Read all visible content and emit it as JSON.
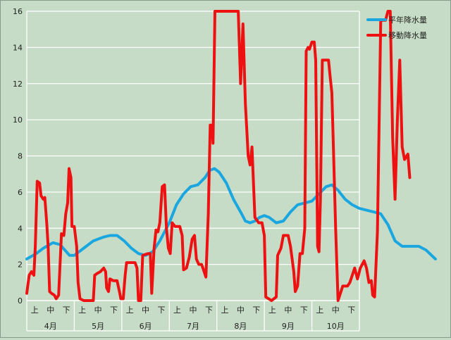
{
  "chart_data": {
    "type": "line",
    "title": "",
    "xlabel": "",
    "ylabel": "",
    "ylim": [
      0,
      16
    ],
    "y_ticks": [
      0,
      2,
      4,
      6,
      8,
      10,
      12,
      14,
      16
    ],
    "grid": "horizontal",
    "legend_position": "top-right",
    "x_sub_labels": [
      "上",
      "中",
      "下"
    ],
    "months": [
      "4月",
      "5月",
      "6月",
      "7月",
      "8月",
      "9月",
      "10月"
    ],
    "x_unit": "month index (0 = start of 4月, 7 = end of 10月)",
    "series": [
      {
        "name": "平年降水量",
        "color": "#1aa7e0",
        "points": [
          [
            0.0,
            2.3
          ],
          [
            0.2,
            2.6
          ],
          [
            0.35,
            2.9
          ],
          [
            0.55,
            3.2
          ],
          [
            0.7,
            3.1
          ],
          [
            0.8,
            2.8
          ],
          [
            0.9,
            2.5
          ],
          [
            1.0,
            2.5
          ],
          [
            1.2,
            2.9
          ],
          [
            1.4,
            3.3
          ],
          [
            1.6,
            3.5
          ],
          [
            1.75,
            3.6
          ],
          [
            1.9,
            3.6
          ],
          [
            2.05,
            3.3
          ],
          [
            2.2,
            2.9
          ],
          [
            2.35,
            2.6
          ],
          [
            2.5,
            2.5
          ],
          [
            2.65,
            2.7
          ],
          [
            2.8,
            3.3
          ],
          [
            3.0,
            4.3
          ],
          [
            3.15,
            5.3
          ],
          [
            3.3,
            5.9
          ],
          [
            3.45,
            6.3
          ],
          [
            3.6,
            6.4
          ],
          [
            3.75,
            6.8
          ],
          [
            3.85,
            7.2
          ],
          [
            3.95,
            7.3
          ],
          [
            4.05,
            7.1
          ],
          [
            4.2,
            6.5
          ],
          [
            4.35,
            5.6
          ],
          [
            4.5,
            4.9
          ],
          [
            4.6,
            4.4
          ],
          [
            4.7,
            4.3
          ],
          [
            4.8,
            4.4
          ],
          [
            4.9,
            4.6
          ],
          [
            5.0,
            4.7
          ],
          [
            5.1,
            4.6
          ],
          [
            5.25,
            4.3
          ],
          [
            5.4,
            4.4
          ],
          [
            5.55,
            4.9
          ],
          [
            5.7,
            5.3
          ],
          [
            5.85,
            5.4
          ],
          [
            6.0,
            5.5
          ],
          [
            6.15,
            5.9
          ],
          [
            6.3,
            6.3
          ],
          [
            6.42,
            6.4
          ],
          [
            6.55,
            6.1
          ],
          [
            6.7,
            5.6
          ],
          [
            6.85,
            5.3
          ],
          [
            7.0,
            5.1
          ],
          [
            7.15,
            5.0
          ],
          [
            7.3,
            4.9
          ],
          [
            7.45,
            4.8
          ],
          [
            7.6,
            4.2
          ],
          [
            7.75,
            3.3
          ],
          [
            7.9,
            3.0
          ],
          [
            8.1,
            3.0
          ],
          [
            8.25,
            3.0
          ],
          [
            8.4,
            2.8
          ],
          [
            8.52,
            2.5
          ],
          [
            8.6,
            2.3
          ]
        ]
      },
      {
        "name": "移動降水量",
        "color": "#ee1111",
        "points": [
          [
            0.0,
            0.4
          ],
          [
            0.05,
            1.4
          ],
          [
            0.1,
            1.6
          ],
          [
            0.15,
            1.4
          ],
          [
            0.18,
            3.0
          ],
          [
            0.22,
            6.6
          ],
          [
            0.27,
            6.5
          ],
          [
            0.3,
            5.8
          ],
          [
            0.35,
            5.6
          ],
          [
            0.38,
            5.7
          ],
          [
            0.42,
            4.3
          ],
          [
            0.45,
            3.0
          ],
          [
            0.48,
            0.5
          ],
          [
            0.52,
            0.4
          ],
          [
            0.58,
            0.3
          ],
          [
            0.62,
            0.1
          ],
          [
            0.67,
            0.3
          ],
          [
            0.7,
            2.0
          ],
          [
            0.73,
            3.7
          ],
          [
            0.78,
            3.6
          ],
          [
            0.82,
            4.8
          ],
          [
            0.86,
            5.4
          ],
          [
            0.89,
            7.3
          ],
          [
            0.93,
            6.8
          ],
          [
            0.95,
            4.1
          ],
          [
            1.0,
            4.1
          ],
          [
            1.05,
            3.0
          ],
          [
            1.08,
            1.0
          ],
          [
            1.12,
            0.1
          ],
          [
            1.2,
            0.0
          ],
          [
            1.4,
            0.0
          ],
          [
            1.43,
            1.4
          ],
          [
            1.48,
            1.5
          ],
          [
            1.55,
            1.6
          ],
          [
            1.62,
            1.8
          ],
          [
            1.66,
            1.6
          ],
          [
            1.68,
            0.7
          ],
          [
            1.72,
            0.5
          ],
          [
            1.75,
            1.2
          ],
          [
            1.82,
            1.1
          ],
          [
            1.9,
            1.1
          ],
          [
            1.95,
            0.5
          ],
          [
            1.98,
            0.1
          ],
          [
            2.03,
            0.1
          ],
          [
            2.07,
            1.4
          ],
          [
            2.1,
            2.1
          ],
          [
            2.2,
            2.1
          ],
          [
            2.28,
            2.1
          ],
          [
            2.32,
            1.8
          ],
          [
            2.35,
            0.0
          ],
          [
            2.4,
            0.0
          ],
          [
            2.44,
            2.5
          ],
          [
            2.55,
            2.6
          ],
          [
            2.6,
            2.6
          ],
          [
            2.63,
            0.4
          ],
          [
            2.68,
            2.9
          ],
          [
            2.72,
            3.9
          ],
          [
            2.76,
            3.8
          ],
          [
            2.8,
            4.3
          ],
          [
            2.85,
            6.3
          ],
          [
            2.9,
            6.4
          ],
          [
            2.94,
            4.0
          ],
          [
            2.98,
            2.9
          ],
          [
            3.02,
            2.6
          ],
          [
            3.06,
            4.3
          ],
          [
            3.12,
            4.1
          ],
          [
            3.22,
            4.1
          ],
          [
            3.27,
            3.6
          ],
          [
            3.3,
            1.7
          ],
          [
            3.36,
            1.8
          ],
          [
            3.42,
            2.4
          ],
          [
            3.48,
            3.4
          ],
          [
            3.53,
            3.6
          ],
          [
            3.57,
            2.3
          ],
          [
            3.62,
            2.0
          ],
          [
            3.68,
            2.0
          ],
          [
            3.72,
            1.7
          ],
          [
            3.77,
            1.3
          ],
          [
            3.82,
            4.8
          ],
          [
            3.86,
            9.7
          ],
          [
            3.9,
            9.7
          ],
          [
            3.92,
            8.7
          ],
          [
            3.96,
            16.0
          ],
          [
            4.45,
            16.0
          ],
          [
            4.5,
            12.0
          ],
          [
            4.55,
            15.3
          ],
          [
            4.6,
            10.9
          ],
          [
            4.66,
            8.0
          ],
          [
            4.7,
            7.5
          ],
          [
            4.74,
            8.5
          ],
          [
            4.8,
            4.6
          ],
          [
            4.88,
            4.3
          ],
          [
            4.95,
            4.3
          ],
          [
            5.0,
            3.6
          ],
          [
            5.03,
            0.2
          ],
          [
            5.15,
            0.0
          ],
          [
            5.25,
            0.2
          ],
          [
            5.28,
            2.5
          ],
          [
            5.35,
            2.9
          ],
          [
            5.4,
            3.6
          ],
          [
            5.5,
            3.6
          ],
          [
            5.55,
            3.0
          ],
          [
            5.62,
            1.6
          ],
          [
            5.65,
            0.5
          ],
          [
            5.7,
            0.8
          ],
          [
            5.75,
            2.6
          ],
          [
            5.8,
            2.6
          ],
          [
            5.85,
            4.0
          ],
          [
            5.88,
            13.8
          ],
          [
            5.92,
            14.0
          ],
          [
            5.95,
            13.9
          ],
          [
            6.0,
            14.3
          ],
          [
            6.05,
            14.3
          ],
          [
            6.08,
            13.3
          ],
          [
            6.12,
            3.0
          ],
          [
            6.15,
            2.7
          ],
          [
            6.18,
            5.6
          ],
          [
            6.22,
            13.3
          ],
          [
            6.35,
            13.3
          ],
          [
            6.38,
            12.5
          ],
          [
            6.42,
            11.5
          ],
          [
            6.45,
            8.8
          ],
          [
            6.5,
            4.0
          ],
          [
            6.55,
            0.0
          ],
          [
            6.65,
            0.8
          ],
          [
            6.75,
            0.8
          ],
          [
            6.8,
            1.0
          ],
          [
            6.9,
            1.8
          ],
          [
            6.96,
            1.2
          ],
          [
            7.02,
            1.8
          ],
          [
            7.1,
            2.2
          ],
          [
            7.15,
            1.8
          ],
          [
            7.2,
            1.0
          ],
          [
            7.25,
            1.1
          ],
          [
            7.28,
            0.3
          ],
          [
            7.32,
            0.2
          ],
          [
            7.38,
            3.8
          ],
          [
            7.45,
            15.5
          ],
          [
            7.55,
            15.5
          ],
          [
            7.6,
            16.0
          ],
          [
            7.65,
            16.0
          ],
          [
            7.7,
            9.0
          ],
          [
            7.75,
            5.6
          ],
          [
            7.8,
            10.0
          ],
          [
            7.85,
            13.3
          ],
          [
            7.9,
            8.5
          ],
          [
            7.95,
            7.8
          ],
          [
            8.02,
            8.1
          ],
          [
            8.06,
            6.8
          ]
        ]
      }
    ]
  }
}
